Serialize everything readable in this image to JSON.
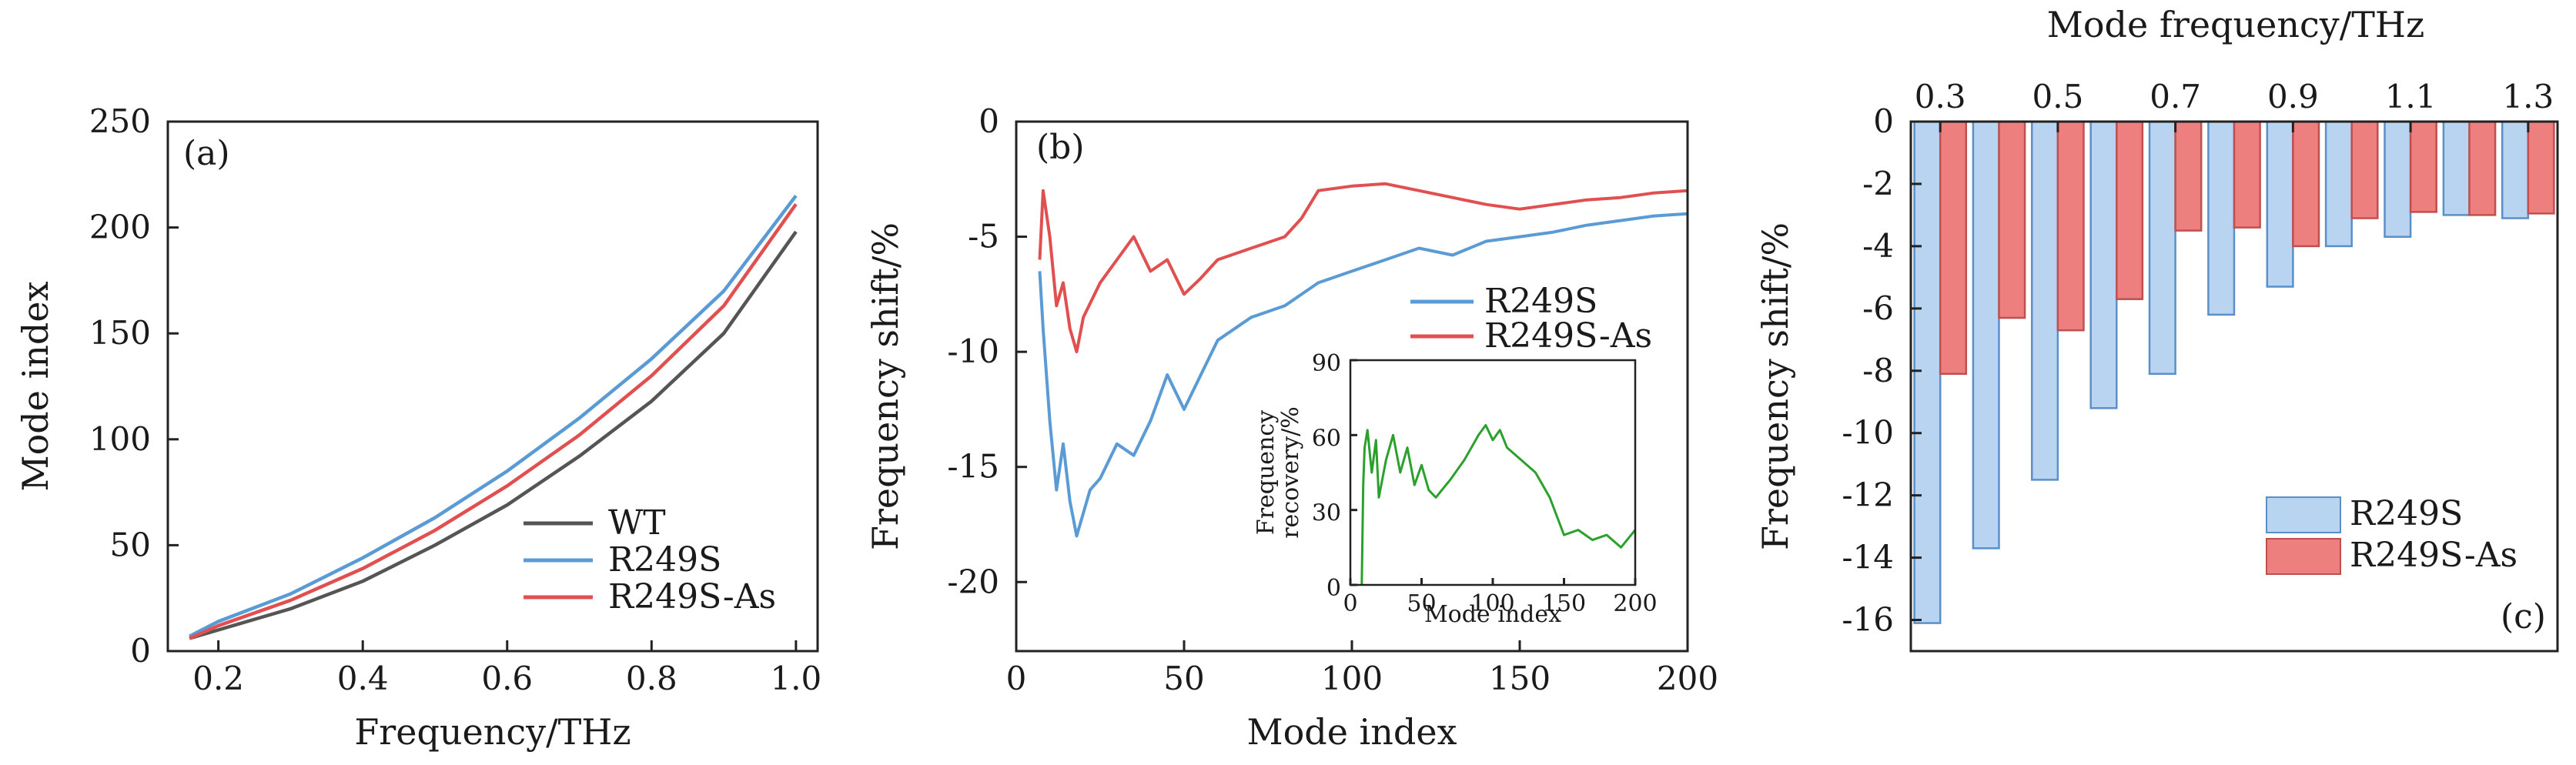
{
  "chart_data": [
    {
      "panel": "a",
      "type": "line",
      "label": "(a)",
      "xlabel": "Frequency/THz",
      "ylabel": "Mode index",
      "xlim": [
        0.13,
        1.03
      ],
      "ylim": [
        0,
        250
      ],
      "xticks": [
        0.2,
        0.4,
        0.6,
        0.8,
        1.0
      ],
      "xtick_labels": [
        "0.2",
        "0.4",
        "0.6",
        "0.8",
        "1.0"
      ],
      "yticks": [
        0,
        50,
        100,
        150,
        200,
        250
      ],
      "ytick_labels": [
        "0",
        "50",
        "100",
        "150",
        "200",
        "250"
      ],
      "legend_position": "bottom-right",
      "series": [
        {
          "name": "WT",
          "color": "#555555",
          "x": [
            0.16,
            0.2,
            0.3,
            0.4,
            0.5,
            0.6,
            0.7,
            0.8,
            0.9,
            1.0
          ],
          "y": [
            6,
            10,
            20,
            33,
            50,
            69,
            92,
            118,
            150,
            198
          ]
        },
        {
          "name": "R249S",
          "color": "#5b9bd5",
          "x": [
            0.16,
            0.2,
            0.3,
            0.4,
            0.5,
            0.6,
            0.7,
            0.8,
            0.9,
            1.0
          ],
          "y": [
            7,
            14,
            27,
            44,
            63,
            85,
            110,
            138,
            170,
            215
          ]
        },
        {
          "name": "R249S-As",
          "color": "#e05050",
          "x": [
            0.16,
            0.2,
            0.3,
            0.4,
            0.5,
            0.6,
            0.7,
            0.8,
            0.9,
            1.0
          ],
          "y": [
            6,
            12,
            24,
            39,
            57,
            78,
            102,
            130,
            163,
            211
          ]
        }
      ]
    },
    {
      "panel": "b",
      "type": "line",
      "label": "(b)",
      "xlabel": "Mode index",
      "ylabel": "Frequency shift/%",
      "xlim": [
        0,
        200
      ],
      "ylim": [
        -23,
        0
      ],
      "xticks": [
        0,
        50,
        100,
        150,
        200
      ],
      "xtick_labels": [
        "0",
        "50",
        "100",
        "150",
        "200"
      ],
      "yticks": [
        0,
        -5,
        -10,
        -15,
        -20
      ],
      "ytick_labels": [
        "0",
        "-5",
        "-10",
        "-15",
        "-20"
      ],
      "legend_position": "right",
      "series": [
        {
          "name": "R249S",
          "color": "#5b9bd5",
          "x": [
            7,
            8,
            10,
            12,
            14,
            16,
            18,
            20,
            22,
            25,
            30,
            35,
            40,
            45,
            50,
            55,
            60,
            70,
            80,
            90,
            100,
            110,
            120,
            130,
            140,
            150,
            160,
            170,
            180,
            190,
            200
          ],
          "y": [
            -6.5,
            -9,
            -13,
            -16,
            -14,
            -16.5,
            -18,
            -17,
            -16,
            -15.5,
            -14,
            -14.5,
            -13,
            -11,
            -12.5,
            -11,
            -9.5,
            -8.5,
            -8,
            -7,
            -6.5,
            -6,
            -5.5,
            -5.8,
            -5.2,
            -5,
            -4.8,
            -4.5,
            -4.3,
            -4.1,
            -4
          ]
        },
        {
          "name": "R249S-As",
          "color": "#e05050",
          "x": [
            7,
            8,
            10,
            12,
            14,
            16,
            18,
            20,
            25,
            30,
            35,
            40,
            45,
            50,
            55,
            60,
            70,
            80,
            85,
            90,
            100,
            110,
            120,
            130,
            140,
            150,
            160,
            170,
            180,
            190,
            200
          ],
          "y": [
            -6,
            -3,
            -5,
            -8,
            -7,
            -9,
            -10,
            -8.5,
            -7,
            -6,
            -5,
            -6.5,
            -6,
            -7.5,
            -6.8,
            -6,
            -5.5,
            -5,
            -4.2,
            -3,
            -2.8,
            -2.7,
            -3,
            -3.3,
            -3.6,
            -3.8,
            -3.6,
            -3.4,
            -3.3,
            -3.1,
            -3
          ]
        }
      ],
      "inset": {
        "xlabel": "Mode index",
        "ylabel": "Frequency recovery/%",
        "ylabel_line1": "Frequency",
        "ylabel_line2": "recovery/%",
        "xlim": [
          0,
          200
        ],
        "ylim": [
          0,
          90
        ],
        "xticks": [
          0,
          50,
          100,
          150,
          200
        ],
        "xtick_labels": [
          "0",
          "50",
          "100",
          "150",
          "200"
        ],
        "yticks": [
          0,
          30,
          60,
          90
        ],
        "ytick_labels": [
          "0",
          "30",
          "60",
          "90"
        ],
        "series": [
          {
            "name": "recovery",
            "color": "#2ca02c",
            "x": [
              8,
              9,
              10,
              12,
              15,
              18,
              20,
              25,
              30,
              35,
              40,
              45,
              50,
              55,
              60,
              70,
              80,
              90,
              95,
              100,
              105,
              110,
              120,
              130,
              140,
              150,
              160,
              170,
              180,
              190,
              200
            ],
            "y": [
              0,
              40,
              55,
              62,
              45,
              58,
              35,
              50,
              60,
              45,
              55,
              40,
              48,
              38,
              35,
              42,
              50,
              60,
              64,
              58,
              62,
              55,
              50,
              45,
              35,
              20,
              22,
              18,
              20,
              15,
              22
            ]
          }
        ]
      }
    },
    {
      "panel": "c",
      "type": "bar",
      "label": "(c)",
      "xlabel": "Mode frequency/THz",
      "ylabel": "Frequency shift/%",
      "categories": [
        "0.3",
        "0.4",
        "0.5",
        "0.6",
        "0.7",
        "0.8",
        "0.9",
        "1.0",
        "1.1",
        "1.2",
        "1.3"
      ],
      "xtick_labels": [
        "0.3",
        "0.5",
        "0.7",
        "0.9",
        "1.1",
        "1.3"
      ],
      "ylim": [
        -17,
        0
      ],
      "yticks": [
        0,
        -2,
        -4,
        -6,
        -8,
        -10,
        -12,
        -14,
        -16
      ],
      "ytick_labels": [
        "0",
        "-2",
        "-4",
        "-6",
        "-8",
        "-10",
        "-12",
        "-14",
        "-16"
      ],
      "legend_position": "bottom-right",
      "series": [
        {
          "name": "R249S",
          "color": "#b8d4f0",
          "edge": "#5b8fc7",
          "values": [
            -16.1,
            -13.7,
            -11.5,
            -9.2,
            -8.1,
            -6.2,
            -5.3,
            -4.0,
            -3.7,
            -3.0,
            -3.1
          ]
        },
        {
          "name": "R249S-As",
          "color": "#ee7f7f",
          "edge": "#c05050",
          "values": [
            -8.1,
            -6.3,
            -6.7,
            -5.7,
            -3.5,
            -3.4,
            -4.0,
            -3.1,
            -2.9,
            -3.0,
            -2.95
          ]
        }
      ]
    }
  ]
}
